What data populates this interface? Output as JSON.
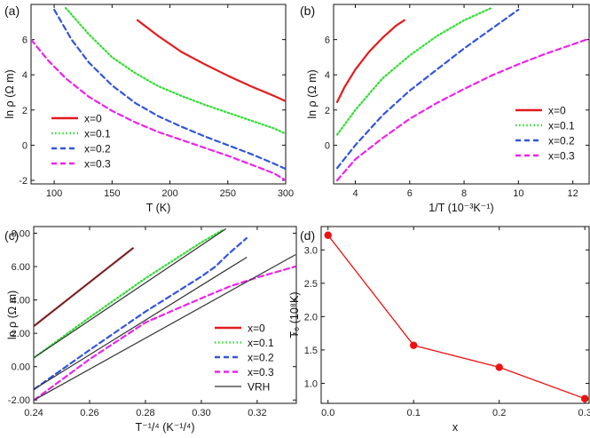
{
  "chart_data": [
    {
      "panel": "(a)",
      "type": "line",
      "xlabel": "T (K)",
      "ylabel": "ln ρ (Ω m)",
      "xlim": [
        80,
        300
      ],
      "ylim": [
        -2.2,
        8
      ],
      "xticks": [
        100,
        150,
        200,
        250,
        300
      ],
      "yticks": [
        -2,
        0,
        2,
        4,
        6
      ],
      "legend_position": "bottom-left",
      "series": [
        {
          "name": "x=0",
          "color": "#e41a1c",
          "style": "solid",
          "x": [
            172,
            190,
            210,
            230,
            250,
            270,
            290,
            300
          ],
          "y": [
            7.1,
            6.2,
            5.3,
            4.6,
            3.95,
            3.35,
            2.8,
            2.5
          ]
        },
        {
          "name": "x=0.1",
          "color": "#33dd33",
          "style": "dotted",
          "x": [
            110,
            130,
            150,
            170,
            190,
            210,
            230,
            250,
            270,
            290,
            300
          ],
          "y": [
            7.8,
            6.3,
            5.0,
            4.1,
            3.35,
            2.8,
            2.3,
            1.85,
            1.4,
            0.95,
            0.65
          ]
        },
        {
          "name": "x=0.2",
          "color": "#3355dd",
          "style": "dashed",
          "x": [
            100,
            115,
            130,
            150,
            170,
            190,
            210,
            230,
            250,
            270,
            290,
            300
          ],
          "y": [
            7.7,
            6.0,
            4.7,
            3.4,
            2.4,
            1.65,
            1.05,
            0.5,
            0.0,
            -0.5,
            -1.05,
            -1.35
          ]
        },
        {
          "name": "x=0.3",
          "color": "#ee22ee",
          "style": "dashed",
          "x": [
            80,
            95,
            110,
            130,
            150,
            170,
            190,
            210,
            230,
            250,
            270,
            290,
            300
          ],
          "y": [
            6.0,
            4.8,
            3.8,
            2.75,
            1.95,
            1.3,
            0.75,
            0.3,
            -0.15,
            -0.6,
            -1.1,
            -1.6,
            -2.0
          ]
        }
      ]
    },
    {
      "panel": "(b)",
      "type": "line",
      "xlabel": "1/T (10⁻³K⁻¹)",
      "ylabel": "ln ρ (Ω m)",
      "xlim": [
        3.2,
        12.6
      ],
      "ylim": [
        -2.2,
        8
      ],
      "xticks": [
        4,
        6,
        8,
        10,
        12
      ],
      "yticks": [
        0,
        2,
        4,
        6
      ],
      "legend_position": "bottom-right",
      "series": [
        {
          "name": "x=0",
          "color": "#e41a1c",
          "style": "solid",
          "x": [
            3.33,
            3.6,
            4.0,
            4.5,
            5.0,
            5.5,
            5.8
          ],
          "y": [
            2.45,
            3.3,
            4.3,
            5.3,
            6.1,
            6.8,
            7.1
          ]
        },
        {
          "name": "x=0.1",
          "color": "#33dd33",
          "style": "dotted",
          "x": [
            3.33,
            4.0,
            5.0,
            6.0,
            7.0,
            8.0,
            9.0
          ],
          "y": [
            0.6,
            2.0,
            3.8,
            5.1,
            6.2,
            7.1,
            7.8
          ]
        },
        {
          "name": "x=0.2",
          "color": "#3355dd",
          "style": "dashed",
          "x": [
            3.33,
            4.0,
            5.0,
            6.0,
            7.0,
            8.0,
            9.0,
            10.0
          ],
          "y": [
            -1.3,
            0.0,
            1.7,
            3.1,
            4.3,
            5.5,
            6.6,
            7.7
          ]
        },
        {
          "name": "x=0.3",
          "color": "#ee22ee",
          "style": "dashed",
          "x": [
            3.33,
            4.0,
            5.0,
            6.0,
            7.0,
            8.0,
            9.0,
            10.0,
            11.0,
            12.5
          ],
          "y": [
            -2.0,
            -0.8,
            0.4,
            1.5,
            2.4,
            3.2,
            3.95,
            4.6,
            5.2,
            6.0
          ]
        }
      ]
    },
    {
      "panel": "(c)",
      "type": "line",
      "xlabel": "T⁻¹/⁴ (K⁻¹/⁴)",
      "ylabel": "ln ρ (Ω m)",
      "xlim": [
        0.24,
        0.334
      ],
      "ylim": [
        -2.2,
        8.4
      ],
      "xticks": [
        0.24,
        0.26,
        0.28,
        0.3,
        0.32
      ],
      "yticks": [
        -2,
        0,
        2,
        4,
        6,
        8
      ],
      "legend_position": "bottom-right",
      "series": [
        {
          "name": "x=0",
          "color": "#e41a1c",
          "style": "solid",
          "x": [
            0.2402,
            0.2755
          ],
          "y": [
            2.45,
            7.1
          ]
        },
        {
          "name": "x=0.1",
          "color": "#33dd33",
          "style": "dotted",
          "x": [
            0.2402,
            0.26,
            0.28,
            0.3,
            0.3077
          ],
          "y": [
            0.55,
            2.95,
            5.3,
            7.45,
            8.2
          ]
        },
        {
          "name": "x=0.2",
          "color": "#3355dd",
          "style": "dashed",
          "x": [
            0.2402,
            0.26,
            0.28,
            0.3,
            0.305,
            0.31,
            0.3162
          ],
          "y": [
            -1.35,
            1.0,
            3.3,
            5.4,
            6.0,
            6.8,
            7.7
          ]
        },
        {
          "name": "x=0.3",
          "color": "#ee22ee",
          "style": "dashed",
          "x": [
            0.2402,
            0.26,
            0.28,
            0.3,
            0.31,
            0.32,
            0.3336
          ],
          "y": [
            -2.0,
            0.45,
            2.65,
            4.1,
            4.8,
            5.35,
            6.0
          ]
        },
        {
          "name": "VRH",
          "color": "#333333",
          "style": "solid",
          "segments": [
            {
              "x": [
                0.2402,
                0.2755
              ],
              "y": [
                2.45,
                7.1
              ]
            },
            {
              "x": [
                0.2402,
                0.3087
              ],
              "y": [
                0.55,
                8.25
              ]
            },
            {
              "x": [
                0.2402,
                0.3162
              ],
              "y": [
                -1.35,
                6.55
              ]
            },
            {
              "x": [
                0.2402,
                0.3336
              ],
              "y": [
                -2.0,
                6.7
              ]
            }
          ]
        }
      ]
    },
    {
      "panel": "(d)",
      "type": "scatter",
      "xlabel": "x",
      "ylabel": "T₀ (10⁸K)",
      "xlim": [
        -0.008,
        0.305
      ],
      "ylim": [
        0.7,
        3.35
      ],
      "xticks": [
        0.0,
        0.1,
        0.2,
        0.3
      ],
      "yticks": [
        1.0,
        1.5,
        2.0,
        2.5,
        3.0
      ],
      "series": [
        {
          "color": "#ee1111",
          "style": "solid-markers",
          "x": [
            0.0,
            0.1,
            0.2,
            0.3
          ],
          "y": [
            3.22,
            1.57,
            1.24,
            0.77
          ]
        }
      ]
    }
  ]
}
